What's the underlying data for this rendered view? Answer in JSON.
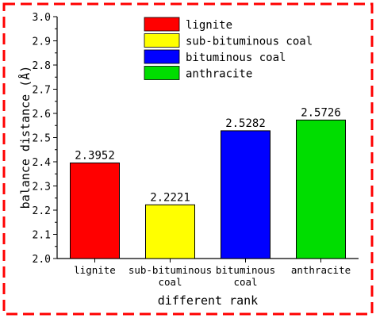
{
  "chart_data": {
    "type": "bar",
    "categories": [
      "lignite",
      "sub-bituminous coal",
      "bituminous coal",
      "anthracite"
    ],
    "values": [
      2.3952,
      2.2221,
      2.5282,
      2.5726
    ],
    "value_labels": [
      "2.3952",
      "2.2221",
      "2.5282",
      "2.5726"
    ],
    "colors": [
      "#ff0000",
      "#ffff00",
      "#0000ff",
      "#00dd00"
    ],
    "xlabel": "different rank",
    "ylabel": "balance distance (Å)",
    "ylim": [
      2.0,
      3.0
    ],
    "yticks": [
      "2.0",
      "2.1",
      "2.2",
      "2.3",
      "2.4",
      "2.5",
      "2.6",
      "2.7",
      "2.8",
      "2.9",
      "3.0"
    ],
    "grid": false,
    "legend": {
      "position": "top-center",
      "entries": [
        "lignite",
        "sub-bituminous coal",
        "bituminous coal",
        "anthracite"
      ]
    },
    "frame_color": "#ff0000"
  }
}
